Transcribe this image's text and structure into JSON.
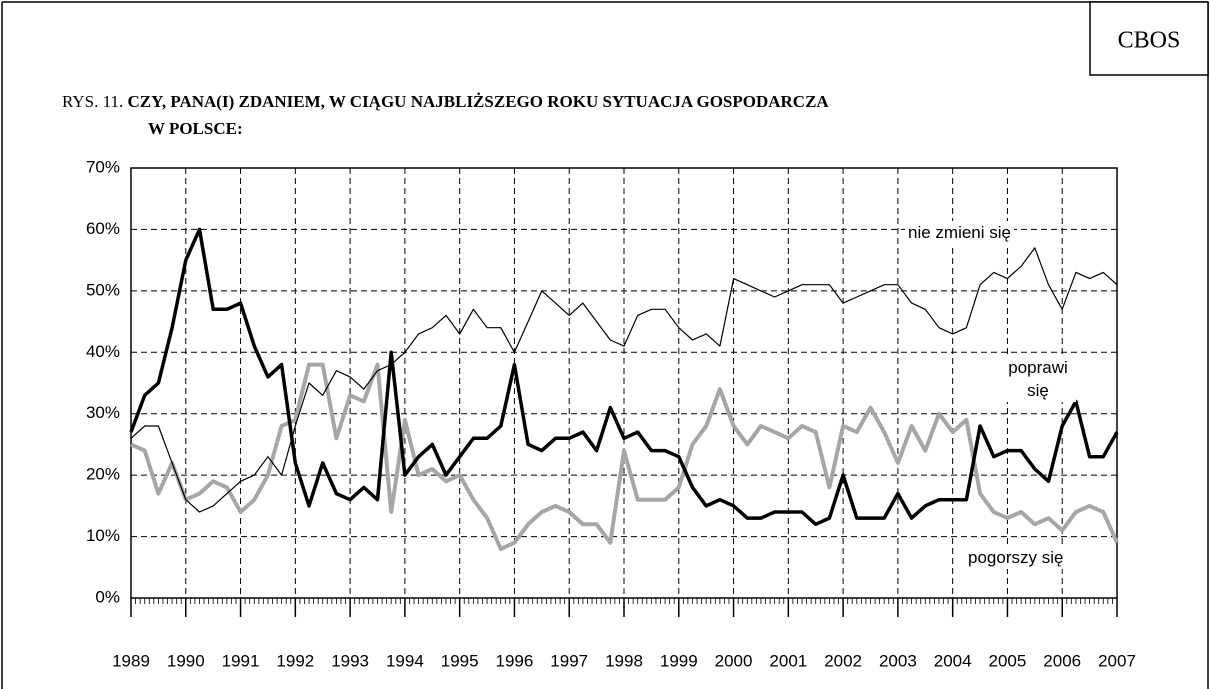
{
  "header": {
    "brand": "CBOS"
  },
  "chart_data": {
    "type": "line",
    "figure_label": "RYS. 11.",
    "title_lines": [
      "CZY, PANA(I) ZDANIEM, W CIĄGU NAJBLIŻSZEGO ROKU SYTUACJA GOSPODARCZA",
      "W POLSCE:"
    ],
    "x": [
      1989,
      1989.25,
      1989.5,
      1989.75,
      1990,
      1990.25,
      1990.5,
      1990.75,
      1991,
      1991.25,
      1991.5,
      1991.75,
      1992,
      1992.25,
      1992.5,
      1992.75,
      1993,
      1993.25,
      1993.5,
      1993.75,
      1994,
      1994.25,
      1994.5,
      1994.75,
      1995,
      1995.25,
      1995.5,
      1995.75,
      1996,
      1996.25,
      1996.5,
      1996.75,
      1997,
      1997.25,
      1997.5,
      1997.75,
      1998,
      1998.25,
      1998.5,
      1998.75,
      1999,
      1999.25,
      1999.5,
      1999.75,
      2000,
      2000.25,
      2000.5,
      2000.75,
      2001,
      2001.25,
      2001.5,
      2001.75,
      2002,
      2002.25,
      2002.5,
      2002.75,
      2003,
      2003.25,
      2003.5,
      2003.75,
      2004,
      2004.25,
      2004.5,
      2004.75,
      2005,
      2005.25,
      2005.5,
      2005.75,
      2006,
      2006.25,
      2006.5,
      2006.75,
      2007
    ],
    "series": [
      {
        "name": "nie zmieni się",
        "color": "#000000",
        "width": 1.2,
        "values": [
          26,
          28,
          28,
          22,
          16,
          14,
          15,
          17,
          19,
          20,
          23,
          20,
          28,
          35,
          33,
          37,
          36,
          34,
          37,
          38,
          40,
          43,
          44,
          46,
          43,
          47,
          44,
          44,
          40,
          45,
          50,
          48,
          46,
          48,
          45,
          42,
          41,
          46,
          47,
          47,
          44,
          42,
          43,
          41,
          52,
          51,
          50,
          49,
          50,
          51,
          51,
          51,
          48,
          49,
          50,
          51,
          51,
          48,
          47,
          44,
          43,
          44,
          51,
          53,
          52,
          54,
          57,
          51,
          47,
          53,
          52,
          53,
          51
        ]
      },
      {
        "name": "poprawi się",
        "color": "#000000",
        "width": 3.5,
        "values": [
          27,
          33,
          35,
          44,
          55,
          60,
          47,
          47,
          48,
          41,
          36,
          38,
          22,
          15,
          22,
          17,
          16,
          18,
          16,
          40,
          20,
          23,
          25,
          20,
          23,
          26,
          26,
          28,
          38,
          25,
          24,
          26,
          26,
          27,
          24,
          31,
          26,
          27,
          24,
          24,
          23,
          18,
          15,
          16,
          15,
          13,
          13,
          14,
          14,
          14,
          12,
          13,
          20,
          13,
          13,
          13,
          17,
          13,
          15,
          16,
          16,
          16,
          28,
          23,
          24,
          24,
          21,
          19,
          28,
          32,
          23,
          23,
          27
        ]
      },
      {
        "name": "pogorszy się",
        "color": "#a6a6a6",
        "width": 4,
        "values": [
          25,
          24,
          17,
          22,
          16,
          17,
          19,
          18,
          14,
          16,
          20,
          28,
          29,
          38,
          38,
          26,
          33,
          32,
          38,
          14,
          29,
          20,
          21,
          19,
          20,
          16,
          13,
          8,
          9,
          12,
          14,
          15,
          14,
          12,
          12,
          9,
          24,
          16,
          16,
          16,
          18,
          25,
          28,
          34,
          28,
          25,
          28,
          27,
          26,
          28,
          27,
          18,
          28,
          27,
          31,
          27,
          22,
          28,
          24,
          30,
          27,
          29,
          17,
          14,
          13,
          14,
          12,
          13,
          11,
          14,
          15,
          14,
          9
        ]
      }
    ],
    "xlim": [
      1989,
      2007
    ],
    "xticks": [
      1989,
      1990,
      1991,
      1992,
      1993,
      1994,
      1995,
      1996,
      1997,
      1998,
      1999,
      2000,
      2001,
      2002,
      2003,
      2004,
      2005,
      2006,
      2007
    ],
    "ylim": [
      0,
      70
    ],
    "yticks": [
      {
        "value": 0,
        "label": "0%"
      },
      {
        "value": 10,
        "label": "10%"
      },
      {
        "value": 20,
        "label": "20%"
      },
      {
        "value": 30,
        "label": "30%"
      },
      {
        "value": 40,
        "label": "40%"
      },
      {
        "value": 50,
        "label": "50%"
      },
      {
        "value": 60,
        "label": "60%"
      },
      {
        "value": 70,
        "label": "70%"
      }
    ],
    "grid": true
  }
}
